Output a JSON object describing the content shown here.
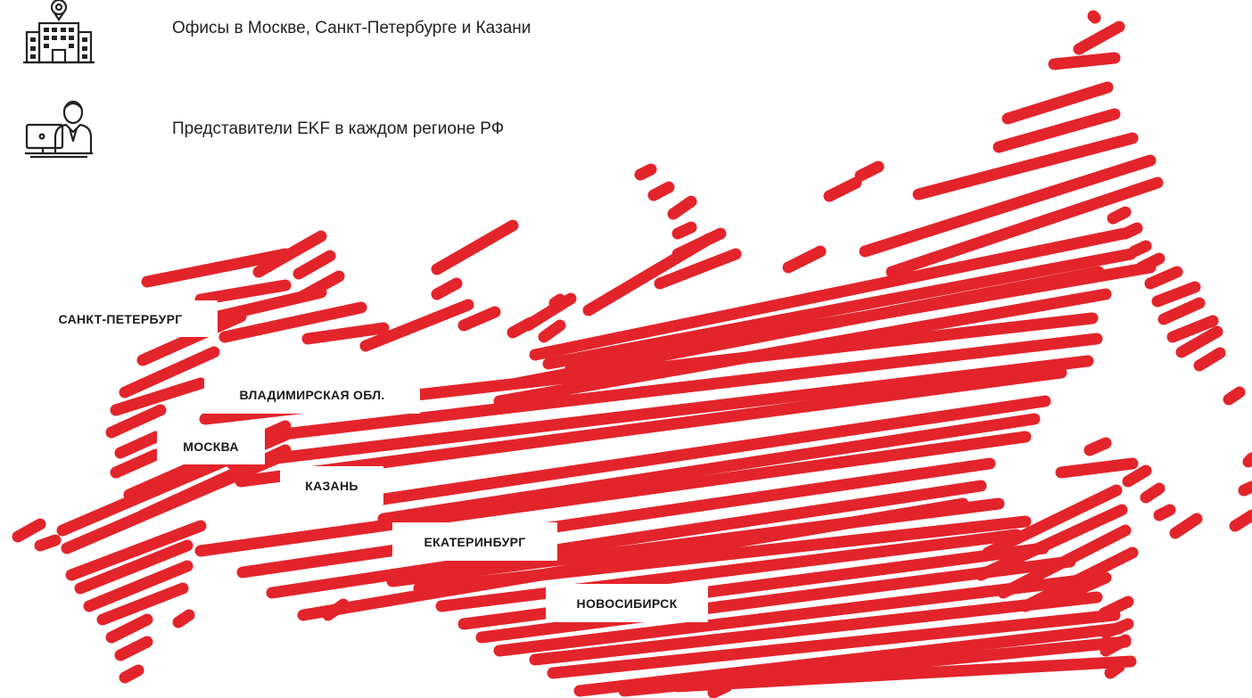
{
  "features": [
    {
      "icon": "office-building-pin-icon",
      "text": "Офисы в Москве, Санкт-Петербурге и Казани"
    },
    {
      "icon": "representative-computer-icon",
      "text": "Представители EKF в каждом регионе РФ"
    }
  ],
  "map": {
    "name": "russia-stripes-map",
    "stripe_color": "#e3242b",
    "cities": [
      {
        "id": "saint-petersburg",
        "label": "САНКТ-ПЕТЕРБУРГ"
      },
      {
        "id": "vladimir-oblast",
        "label": "ВЛАДИМИРСКАЯ ОБЛ."
      },
      {
        "id": "moscow",
        "label": "МОСКВА"
      },
      {
        "id": "kazan",
        "label": "КАЗАНЬ"
      },
      {
        "id": "yekaterinburg",
        "label": "ЕКАТЕРИНБУРГ"
      },
      {
        "id": "novosibirsk",
        "label": "НОВОСИБИРСК"
      }
    ]
  }
}
